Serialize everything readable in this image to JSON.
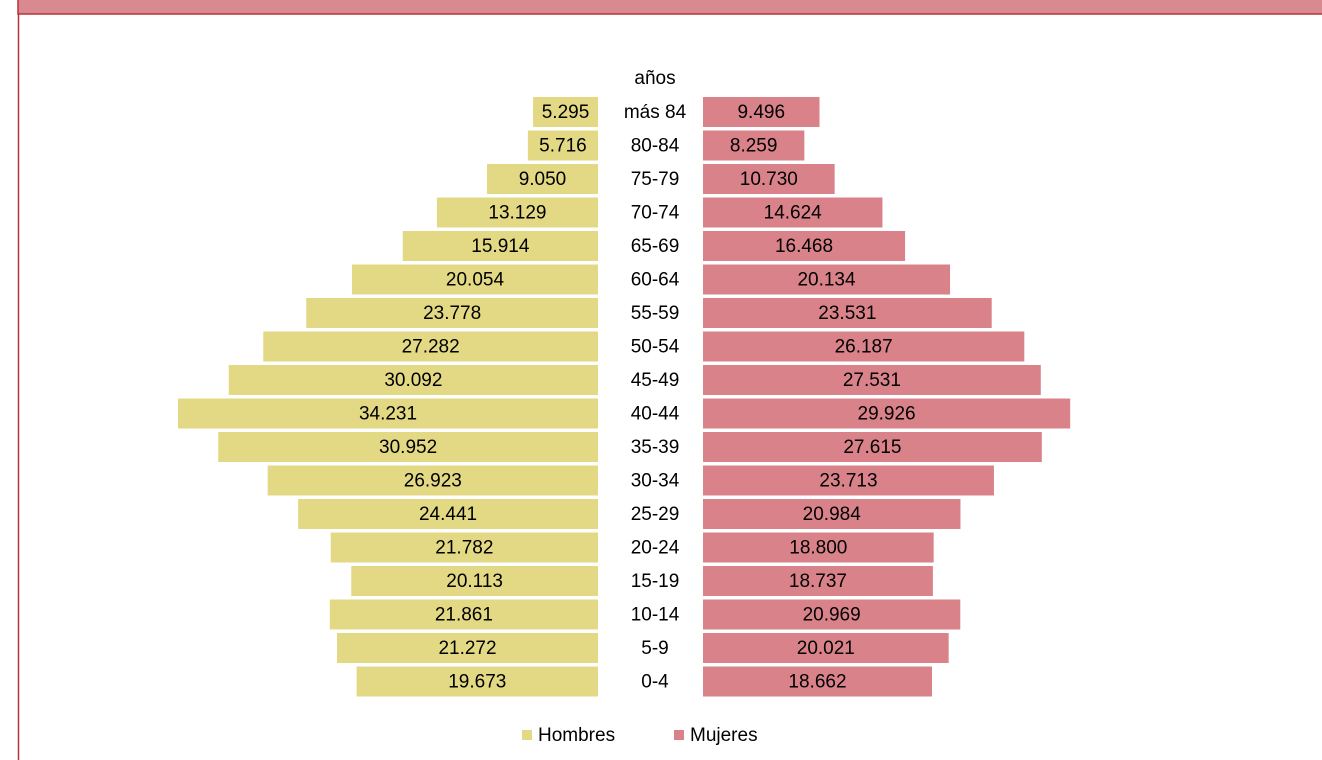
{
  "chart_data": {
    "type": "pyramid",
    "category_label": "años",
    "categories": [
      "más 84",
      "80-84",
      "75-79",
      "70-74",
      "65-69",
      "60-64",
      "55-59",
      "50-54",
      "45-49",
      "40-44",
      "35-39",
      "30-34",
      "25-29",
      "20-24",
      "15-19",
      "10-14",
      "5-9",
      "0-4"
    ],
    "series": [
      {
        "name": "Hombres",
        "color": "#e3d985",
        "side": "left",
        "values": [
          5295,
          5716,
          9050,
          13129,
          15914,
          20054,
          23778,
          27282,
          30092,
          34231,
          30952,
          26923,
          24441,
          21782,
          20113,
          21861,
          21272,
          19673
        ],
        "value_labels": [
          "5.295",
          "5.716",
          "9.050",
          "13.129",
          "15.914",
          "20.054",
          "23.778",
          "27.282",
          "30.092",
          "34.231",
          "30.952",
          "26.923",
          "24.441",
          "21.782",
          "20.113",
          "21.861",
          "21.272",
          "19.673"
        ]
      },
      {
        "name": "Mujeres",
        "color": "#d9828a",
        "side": "right",
        "values": [
          9496,
          8259,
          10730,
          14624,
          16468,
          20134,
          23531,
          26187,
          27531,
          29926,
          27615,
          23713,
          20984,
          18800,
          18737,
          20969,
          20021,
          18662
        ],
        "value_labels": [
          "9.496",
          "8.259",
          "10.730",
          "14.624",
          "16.468",
          "20.134",
          "23.531",
          "26.187",
          "27.531",
          "29.926",
          "27.615",
          "23.713",
          "20.984",
          "18.800",
          "18.737",
          "20.969",
          "20.021",
          "18.662"
        ]
      }
    ],
    "legend": "bottom"
  }
}
